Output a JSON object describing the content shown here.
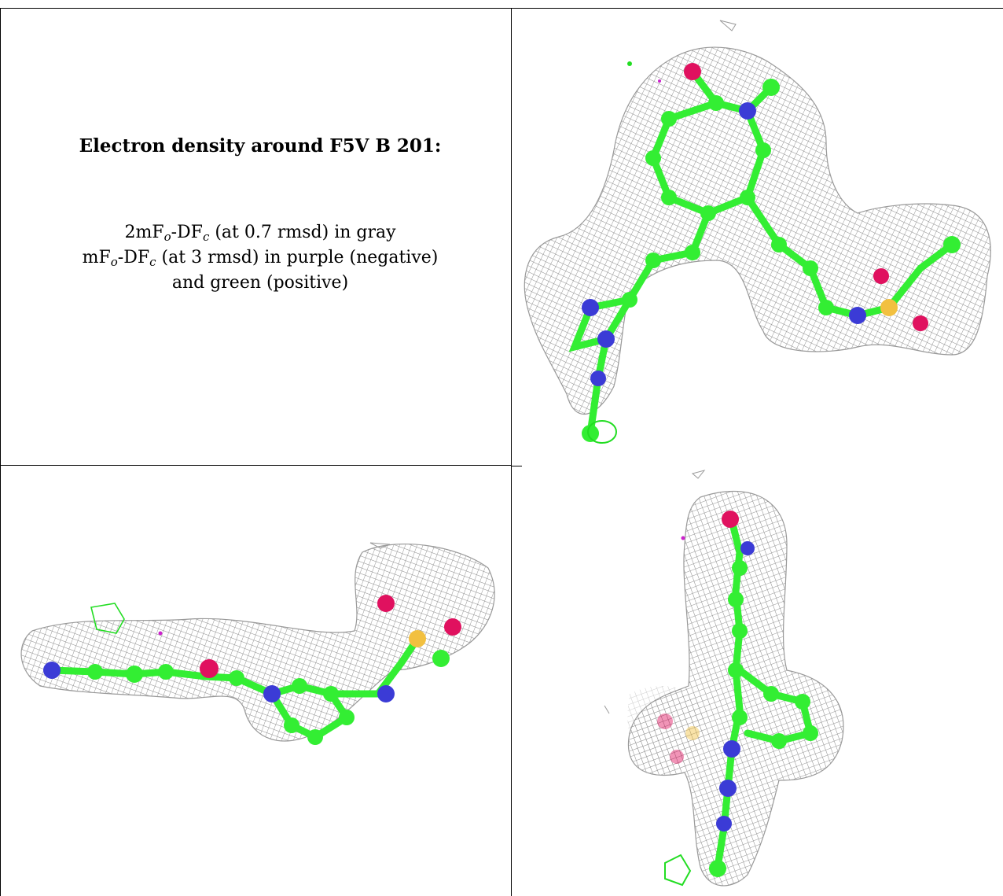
{
  "figure": {
    "title": "Electron density around F5V B 201:",
    "legend_lines": [
      {
        "pre": "2mF",
        "sub1": "o",
        "mid": "-DF",
        "sub2": "c",
        "post": " (at 0.7 rmsd) in gray"
      },
      {
        "pre": "mF",
        "sub1": "o",
        "mid": "-DF",
        "sub2": "c",
        "post": " (at 3 rmsd) in purple (negative)"
      },
      {
        "pre": "",
        "sub1": "",
        "mid": "",
        "sub2": "",
        "post": "and green (positive)"
      }
    ],
    "colors": {
      "mesh": "#8a8a8a",
      "carbon": "#33ee33",
      "nitrogen": "#3b3bd6",
      "oxygen": "#e0115f",
      "sulfur": "#f2c040",
      "positive": "#22dd22",
      "negative": "#cc22cc"
    },
    "panels": [
      {
        "view": "front-view"
      },
      {
        "view": "side-view"
      },
      {
        "view": "end-view"
      }
    ]
  }
}
